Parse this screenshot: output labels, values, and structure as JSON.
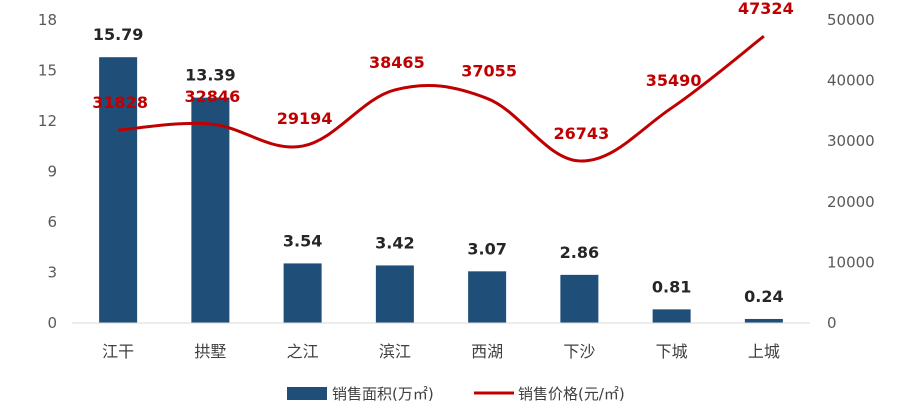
{
  "chart_data": {
    "type": "bar",
    "categories": [
      "江干",
      "拱墅",
      "之江",
      "滨江",
      "西湖",
      "下沙",
      "下城",
      "上城"
    ],
    "series": [
      {
        "name": "销售面积(万㎡)",
        "type": "bar",
        "axis": "left",
        "values": [
          15.79,
          13.39,
          3.54,
          3.42,
          3.07,
          2.86,
          0.81,
          0.24
        ],
        "color": "#1f4e79"
      },
      {
        "name": "销售价格(元/㎡)",
        "type": "line",
        "axis": "right",
        "values": [
          31828,
          32846,
          29194,
          38465,
          37055,
          26743,
          35490,
          47324
        ],
        "color": "#c00000"
      }
    ],
    "left_axis": {
      "ylim": [
        0,
        18
      ],
      "ticks": [
        "0",
        "3",
        "6",
        "9",
        "12",
        "15",
        "18"
      ]
    },
    "right_axis": {
      "ylim": [
        0,
        50000
      ],
      "ticks": [
        "0",
        "10000",
        "20000",
        "30000",
        "40000",
        "50000"
      ]
    },
    "grid": false,
    "legend_position": "bottom"
  }
}
